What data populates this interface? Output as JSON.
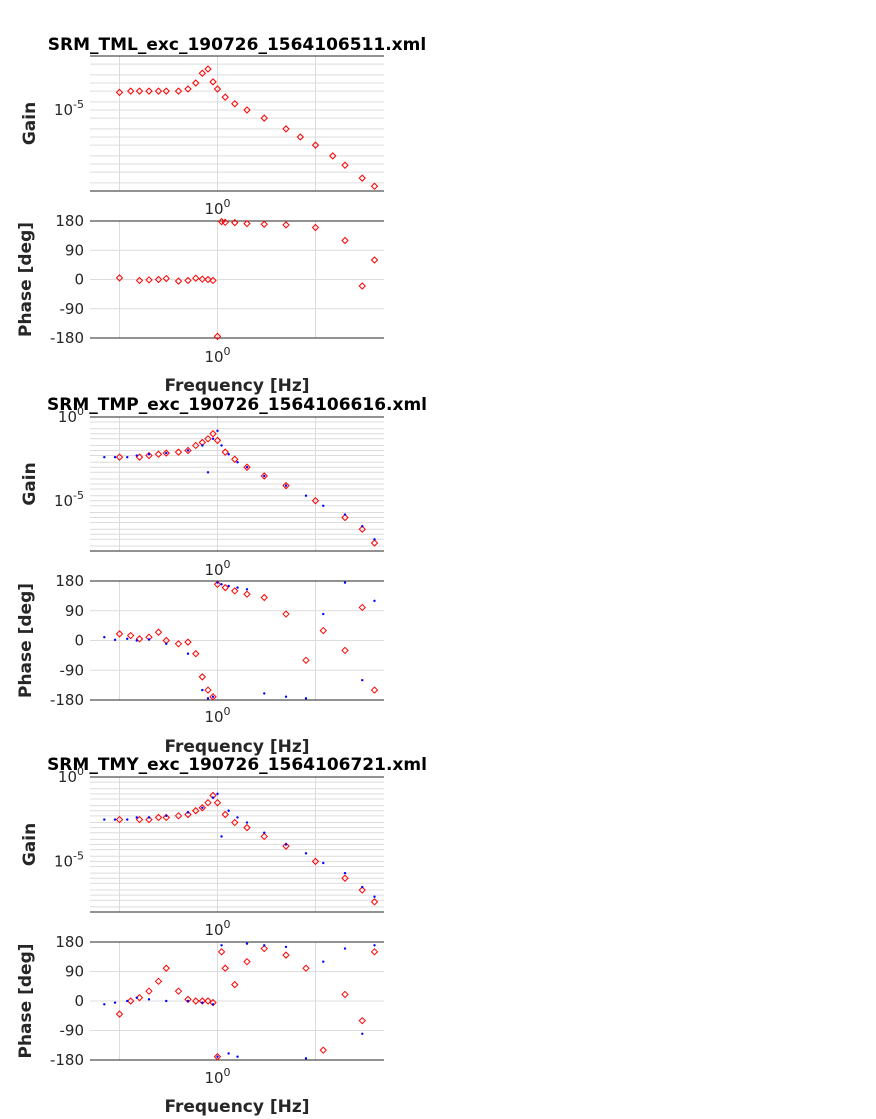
{
  "chart_data": [
    {
      "type": "scatter",
      "title": "SRM_TML_exc_190726_1564106511.xml",
      "xlabel": "Frequency [Hz]",
      "xscale": "log",
      "gain": {
        "ylabel": "Gain",
        "yscale": "log",
        "ylim": [
          1e-08,
          0.001
        ],
        "yticks": [
          {
            "label": "10",
            "exp": "-5"
          }
        ],
        "xticks": [
          {
            "label": "10",
            "exp": "0"
          }
        ],
        "series": [
          {
            "color": "#ff0000",
            "marker": "diamond",
            "x": [
              0.1,
              0.13,
              0.16,
              0.2,
              0.25,
              0.3,
              0.4,
              0.5,
              0.6,
              0.7,
              0.8,
              0.9,
              1.0,
              1.2,
              1.5,
              2,
              3,
              5,
              7,
              10,
              15,
              20,
              30,
              40
            ],
            "y": [
              4.5e-05,
              5e-05,
              5e-05,
              5e-05,
              5e-05,
              5e-05,
              5e-05,
              6e-05,
              0.0001,
              0.00023,
              0.00033,
              0.00011,
              6e-05,
              3e-05,
              1.7e-05,
              1e-05,
              5e-06,
              2e-06,
              1e-06,
              5e-07,
              2e-07,
              9e-08,
              3e-08,
              1.5e-08
            ]
          }
        ]
      },
      "phase": {
        "ylabel": "Phase [deg]",
        "ylim": [
          -180,
          180
        ],
        "yticks": [
          180,
          90,
          0,
          -90,
          -180
        ],
        "xticks": [
          {
            "label": "10",
            "exp": "0"
          }
        ],
        "series": [
          {
            "color": "#ff0000",
            "marker": "diamond",
            "x": [
              0.1,
              0.16,
              0.2,
              0.25,
              0.3,
              0.4,
              0.5,
              0.6,
              0.7,
              0.8,
              0.9,
              1.0,
              1.1,
              1.2,
              1.5,
              2,
              3,
              5,
              10,
              20,
              30,
              40
            ],
            "y": [
              5,
              -3,
              -1,
              0,
              3,
              -5,
              -3,
              4,
              1,
              0,
              -3,
              -175,
              178,
              176,
              175,
              172,
              170,
              168,
              160,
              120,
              -20,
              60
            ]
          }
        ]
      }
    },
    {
      "type": "scatter",
      "title": "SRM_TMP_exc_190726_1564106616.xml",
      "xlabel": "Frequency [Hz]",
      "xscale": "log",
      "gain": {
        "ylabel": "Gain",
        "yscale": "log",
        "ylim": [
          1e-08,
          1
        ],
        "yticks": [
          {
            "label": "10",
            "exp": "0"
          },
          {
            "label": "10",
            "exp": "-5"
          }
        ],
        "xticks": [
          {
            "label": "10",
            "exp": "0"
          }
        ],
        "series": [
          {
            "color": "#ff0000",
            "marker": "diamond",
            "x": [
              0.1,
              0.16,
              0.2,
              0.25,
              0.3,
              0.4,
              0.5,
              0.6,
              0.7,
              0.8,
              0.9,
              1.0,
              1.2,
              1.5,
              2,
              3,
              5,
              10,
              20,
              30,
              40
            ],
            "y": [
              0.004,
              0.004,
              0.005,
              0.006,
              0.007,
              0.008,
              0.01,
              0.02,
              0.03,
              0.05,
              0.1,
              0.04,
              0.008,
              0.003,
              0.001,
              0.0003,
              8e-05,
              1e-05,
              1e-06,
              2e-07,
              3e-08
            ]
          },
          {
            "color": "#0000ff",
            "marker": "dot",
            "x": [
              0.07,
              0.09,
              0.12,
              0.15,
              0.2,
              0.3,
              0.5,
              0.7,
              0.8,
              0.9,
              1.0,
              1.1,
              1.3,
              1.6,
              2,
              3,
              5,
              8,
              12,
              20,
              30,
              40
            ],
            "y": [
              0.004,
              0.004,
              0.004,
              0.005,
              0.006,
              0.007,
              0.01,
              0.02,
              0.0005,
              0.05,
              0.15,
              0.02,
              0.006,
              0.002,
              0.001,
              0.0003,
              8e-05,
              2e-05,
              5e-06,
              1.5e-06,
              3e-07,
              5e-08
            ]
          }
        ]
      },
      "phase": {
        "ylabel": "Phase [deg]",
        "ylim": [
          -180,
          180
        ],
        "yticks": [
          180,
          90,
          0,
          -90,
          -180
        ],
        "xticks": [
          {
            "label": "10",
            "exp": "0"
          }
        ],
        "series": [
          {
            "color": "#ff0000",
            "marker": "diamond",
            "x": [
              0.1,
              0.13,
              0.16,
              0.2,
              0.25,
              0.3,
              0.4,
              0.5,
              0.6,
              0.7,
              0.8,
              0.9,
              1.0,
              1.2,
              1.5,
              2,
              3,
              5,
              8,
              12,
              20,
              30,
              40
            ],
            "y": [
              20,
              15,
              5,
              10,
              25,
              0,
              -10,
              -5,
              -40,
              -110,
              -150,
              -170,
              170,
              160,
              150,
              140,
              130,
              80,
              -60,
              30,
              -30,
              100,
              -150
            ]
          },
          {
            "color": "#0000ff",
            "marker": "dot",
            "x": [
              0.07,
              0.09,
              0.12,
              0.15,
              0.2,
              0.3,
              0.5,
              0.7,
              0.8,
              0.9,
              1.0,
              1.1,
              1.3,
              1.6,
              2,
              3,
              5,
              8,
              12,
              20,
              30,
              40
            ],
            "y": [
              10,
              2,
              5,
              0,
              3,
              -10,
              -40,
              -150,
              -175,
              -170,
              175,
              170,
              165,
              160,
              155,
              -160,
              -170,
              -175,
              80,
              175,
              -120,
              120
            ]
          }
        ]
      }
    },
    {
      "type": "scatter",
      "title": "SRM_TMY_exc_190726_1564106721.xml",
      "xlabel": "Frequency [Hz]",
      "xscale": "log",
      "gain": {
        "ylabel": "Gain",
        "yscale": "log",
        "ylim": [
          1e-08,
          1
        ],
        "yticks": [
          {
            "label": "10",
            "exp": "0"
          },
          {
            "label": "10",
            "exp": "-5"
          }
        ],
        "xticks": [
          {
            "label": "10",
            "exp": "0"
          }
        ],
        "series": [
          {
            "color": "#ff0000",
            "marker": "diamond",
            "x": [
              0.1,
              0.16,
              0.2,
              0.25,
              0.3,
              0.4,
              0.5,
              0.6,
              0.7,
              0.8,
              0.9,
              1.0,
              1.2,
              1.5,
              2,
              3,
              5,
              10,
              20,
              30,
              40
            ],
            "y": [
              0.003,
              0.003,
              0.003,
              0.004,
              0.004,
              0.005,
              0.006,
              0.01,
              0.015,
              0.03,
              0.08,
              0.03,
              0.006,
              0.002,
              0.001,
              0.0003,
              8e-05,
              1e-05,
              1e-06,
              2e-07,
              4e-08
            ]
          },
          {
            "color": "#0000ff",
            "marker": "dot",
            "x": [
              0.07,
              0.09,
              0.12,
              0.15,
              0.2,
              0.3,
              0.5,
              0.7,
              0.9,
              1.0,
              1.1,
              1.3,
              1.6,
              2,
              3,
              5,
              8,
              12,
              20,
              30,
              40
            ],
            "y": [
              0.003,
              0.003,
              0.003,
              0.004,
              0.004,
              0.005,
              0.008,
              0.015,
              0.06,
              0.1,
              0.0003,
              0.01,
              0.004,
              0.002,
              0.0005,
              0.0001,
              3e-05,
              8e-06,
              2e-06,
              3e-07,
              8e-08
            ]
          }
        ]
      },
      "phase": {
        "ylabel": "Phase [deg]",
        "ylim": [
          -180,
          180
        ],
        "yticks": [
          180,
          90,
          0,
          -90,
          -180
        ],
        "xticks": [
          {
            "label": "10",
            "exp": "0"
          }
        ],
        "series": [
          {
            "color": "#ff0000",
            "marker": "diamond",
            "x": [
              0.1,
              0.13,
              0.16,
              0.2,
              0.25,
              0.3,
              0.4,
              0.5,
              0.6,
              0.7,
              0.8,
              0.9,
              1.0,
              1.1,
              1.2,
              1.5,
              2,
              3,
              5,
              8,
              12,
              20,
              30,
              40
            ],
            "y": [
              -40,
              0,
              10,
              30,
              60,
              100,
              30,
              5,
              0,
              0,
              0,
              -5,
              -170,
              150,
              100,
              50,
              120,
              160,
              140,
              100,
              -150,
              20,
              -60,
              150
            ]
          },
          {
            "color": "#0000ff",
            "marker": "dot",
            "x": [
              0.07,
              0.09,
              0.12,
              0.15,
              0.2,
              0.3,
              0.5,
              0.7,
              0.9,
              1.0,
              1.1,
              1.3,
              1.6,
              2,
              3,
              5,
              8,
              12,
              20,
              30,
              40
            ],
            "y": [
              -10,
              -5,
              0,
              10,
              5,
              0,
              0,
              -5,
              -10,
              -170,
              170,
              -160,
              -170,
              175,
              170,
              165,
              -175,
              120,
              160,
              -100,
              170
            ]
          }
        ]
      }
    }
  ]
}
